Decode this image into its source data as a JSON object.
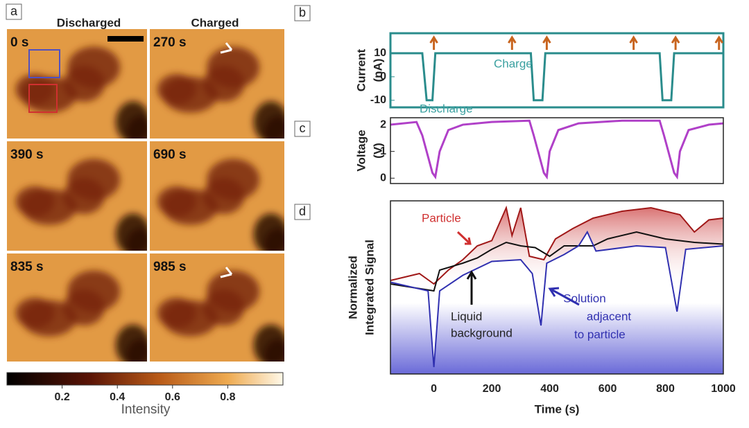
{
  "panel_a": {
    "label": "a",
    "columns": [
      "Discharged",
      "Charged"
    ],
    "times": [
      "0 s",
      "270 s",
      "390 s",
      "690 s",
      "835 s",
      "985 s"
    ],
    "colorbar": {
      "label": "Intensity",
      "lim": [
        0,
        1
      ],
      "ticks": [
        0.2,
        0.4,
        0.6,
        0.8
      ]
    }
  },
  "chart_data": [
    {
      "type": "line",
      "label": "b",
      "ylabel": [
        "Current",
        "(nA)"
      ],
      "color": "#2a8c8c",
      "xlim": [
        -150,
        1000
      ],
      "ylim": [
        -13,
        18.5
      ],
      "yticks": [
        -10,
        0,
        10
      ],
      "annotations": [
        "Charge",
        "Discharge"
      ],
      "markers_x": [
        0,
        270,
        390,
        690,
        835,
        985
      ],
      "marker_color": "#c8641e",
      "series": [
        {
          "name": "Current",
          "color": "#2a8c8c",
          "x": [
            -150,
            -40,
            -25,
            -5,
            5,
            335,
            345,
            375,
            385,
            780,
            790,
            820,
            830,
            1000
          ],
          "values": [
            10,
            10,
            -10,
            -10,
            10,
            10,
            -10,
            -10,
            10,
            10,
            -10,
            -10,
            10,
            10
          ]
        }
      ]
    },
    {
      "type": "line",
      "label": "c",
      "ylabel": [
        "Voltage",
        "(V)"
      ],
      "color": "#222",
      "xlim": [
        -150,
        1000
      ],
      "ylim": [
        -0.2,
        2.26
      ],
      "yticks": [
        0,
        1,
        2
      ],
      "series": [
        {
          "name": "Voltage",
          "color": "#b040c8",
          "x": [
            -150,
            -60,
            -40,
            -20,
            -5,
            5,
            20,
            50,
            100,
            200,
            330,
            345,
            365,
            380,
            390,
            400,
            430,
            500,
            650,
            780,
            795,
            815,
            830,
            840,
            850,
            880,
            950,
            1000
          ],
          "values": [
            2.0,
            2.1,
            1.6,
            0.8,
            0.2,
            0.05,
            1.0,
            1.8,
            2.0,
            2.1,
            2.15,
            1.6,
            0.8,
            0.2,
            0.05,
            1.0,
            1.8,
            2.05,
            2.15,
            2.15,
            1.6,
            0.8,
            0.2,
            0.05,
            1.0,
            1.8,
            2.0,
            2.05
          ]
        }
      ]
    },
    {
      "type": "line",
      "label": "d",
      "ylabel": [
        "Normalized",
        "Integrated Signal"
      ],
      "xlabel": "Time (s)",
      "color": "#222",
      "xlim": [
        -150,
        1000
      ],
      "ylim": [
        0,
        1
      ],
      "xticks": [
        0,
        200,
        400,
        600,
        800,
        1000
      ],
      "annotations": [
        "Particle",
        [
          "Liquid",
          "background"
        ],
        [
          "Solution",
          "adjacent",
          "to particle"
        ]
      ],
      "series": [
        {
          "name": "Particle",
          "color": "#a01818",
          "x": [
            -150,
            -50,
            0,
            50,
            100,
            150,
            200,
            250,
            270,
            300,
            330,
            380,
            420,
            480,
            550,
            650,
            750,
            850,
            900,
            950,
            1000
          ],
          "values": [
            0.54,
            0.58,
            0.52,
            0.6,
            0.66,
            0.74,
            0.77,
            0.96,
            0.8,
            0.96,
            0.68,
            0.66,
            0.78,
            0.84,
            0.9,
            0.94,
            0.96,
            0.92,
            0.82,
            0.89,
            0.9
          ]
        },
        {
          "name": "Liquid background",
          "color": "#111111",
          "x": [
            -150,
            0,
            20,
            100,
            150,
            200,
            250,
            300,
            350,
            400,
            450,
            550,
            600,
            700,
            800,
            900,
            1000
          ],
          "values": [
            0.52,
            0.48,
            0.6,
            0.64,
            0.67,
            0.72,
            0.76,
            0.74,
            0.73,
            0.68,
            0.74,
            0.74,
            0.78,
            0.82,
            0.78,
            0.76,
            0.75
          ]
        },
        {
          "name": "Solution adjacent to particle",
          "color": "#3030b0",
          "x": [
            -150,
            -20,
            0,
            20,
            100,
            200,
            300,
            340,
            370,
            390,
            450,
            500,
            530,
            560,
            700,
            800,
            840,
            870,
            1000
          ],
          "values": [
            0.53,
            0.48,
            0.04,
            0.48,
            0.57,
            0.65,
            0.66,
            0.58,
            0.28,
            0.64,
            0.69,
            0.74,
            0.82,
            0.71,
            0.74,
            0.73,
            0.36,
            0.72,
            0.74
          ]
        }
      ]
    }
  ]
}
